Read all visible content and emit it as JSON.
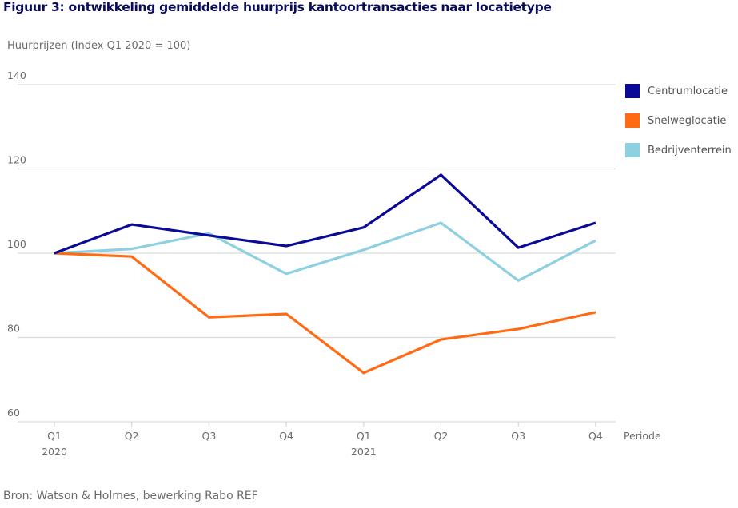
{
  "chart_data": {
    "type": "line",
    "title": "Figuur 3: ontwikkeling gemiddelde huurprijs kantoortransacties naar locatietype",
    "ylabel": "Huurprijzen (Index Q1 2020 = 100)",
    "xlabel": "Periode",
    "ylim": [
      60,
      140
    ],
    "yticks": [
      60,
      80,
      100,
      120,
      140
    ],
    "grid": true,
    "legend_position": "right",
    "categories": [
      {
        "q": "Q1",
        "year": "2020"
      },
      {
        "q": "Q2",
        "year": ""
      },
      {
        "q": "Q3",
        "year": ""
      },
      {
        "q": "Q4",
        "year": ""
      },
      {
        "q": "Q1",
        "year": "2021"
      },
      {
        "q": "Q2",
        "year": ""
      },
      {
        "q": "Q3",
        "year": ""
      },
      {
        "q": "Q4",
        "year": ""
      }
    ],
    "series": [
      {
        "name": "Centrumlocatie",
        "color": "#0a0a96",
        "values": [
          100,
          106.8,
          104.2,
          101.7,
          106.1,
          118.6,
          101.3,
          107.2
        ]
      },
      {
        "name": "Snelweglocatie",
        "color": "#ff6a13",
        "values": [
          100,
          99.2,
          84.8,
          85.6,
          71.6,
          79.5,
          82.0,
          86.0
        ]
      },
      {
        "name": "Bedrijventerrein",
        "color": "#8dd0e0",
        "values": [
          100,
          101.0,
          104.7,
          95.1,
          100.8,
          107.2,
          93.5,
          103.0
        ]
      }
    ],
    "source": "Bron: Watson & Holmes, bewerking Rabo REF"
  }
}
